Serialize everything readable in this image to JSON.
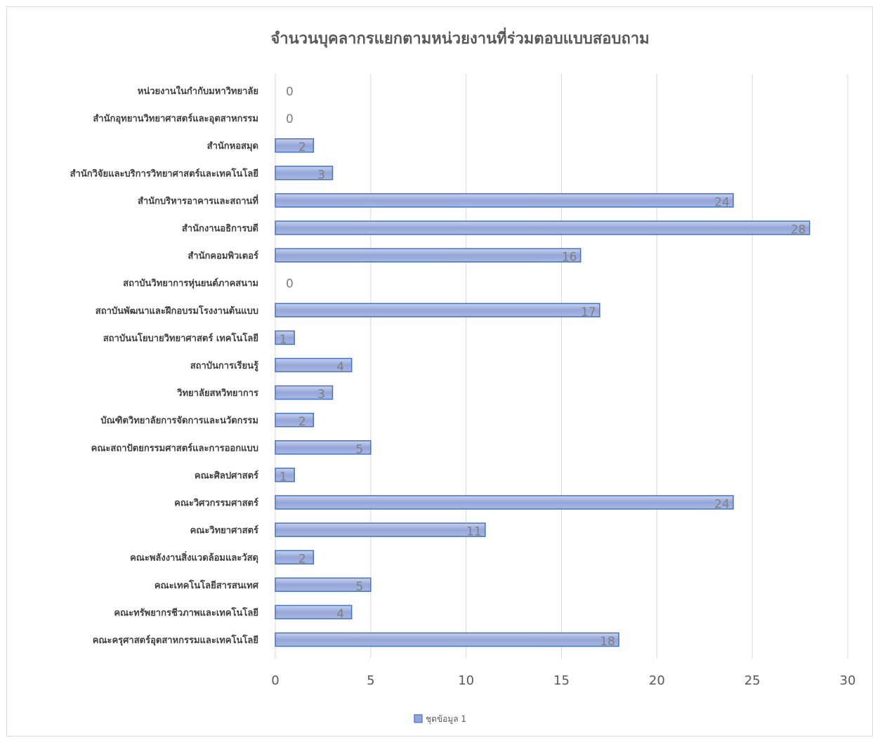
{
  "chart_data": {
    "type": "bar",
    "orientation": "horizontal",
    "title": "จำนวนบุคลากรแยกตามหน่วยงานที่ร่วมตอบแบบสอบถาม",
    "xlabel": "",
    "ylabel": "",
    "xlim": [
      0,
      30
    ],
    "x_ticks": [
      0,
      5,
      10,
      15,
      20,
      25,
      30
    ],
    "grid": true,
    "legend_position": "bottom",
    "categories": [
      "คณะครุศาสตร์อุตสาหกรรมและเทคโนโลยี",
      "คณะทรัพยากรชีวภาพและเทคโนโลยี",
      "คณะเทคโนโลยีสารสนเทศ",
      "คณะพลังงานสิ่งแวดล้อมและวัสดุ",
      "คณะวิทยาศาสตร์",
      "คณะวิศวกรรมศาสตร์",
      "คณะศิลปศาสตร์",
      "คณะสถาปัตยกรรมศาสตร์และการออกแบบ",
      "บัณฑิตวิทยาลัยการจัดการและนวัตกรรม",
      "วิทยาลัยสหวิทยาการ",
      "สถาบันการเรียนรู้",
      "สถาบันนโยบายวิทยาศาสตร์ เทคโนโลยี",
      "สถาบันพัฒนาและฝึกอบรมโรงงานต้นแบบ",
      "สถาบันวิทยาการหุ่นยนต์ภาคสนาม",
      "สำนักคอมพิวเตอร์",
      "สำนักงานอธิการบดี",
      "สำนักบริหารอาคารและสถานที่",
      "สำนักวิจัยและบริการวิทยาศาสตร์และเทคโนโลยี",
      "สำนักหอสมุด",
      "สำนักอุทยานวิทยาศาสตร์และอุตสาหกรรม",
      "หน่วยงานในกำกับมหาวิทยาลัย"
    ],
    "series": [
      {
        "name": "ชุดข้อมูล 1",
        "values": [
          18,
          4,
          5,
          2,
          11,
          24,
          1,
          5,
          2,
          3,
          4,
          1,
          17,
          0,
          16,
          28,
          24,
          3,
          2,
          0,
          0
        ]
      }
    ],
    "colors": {
      "bar_fill_top": "#c9d3ee",
      "bar_fill_mid": "#94a6d8",
      "bar_fill_bottom": "#a9b8e2",
      "bar_stroke": "#4472c4",
      "grid": "#d9d9d9",
      "title": "#595959",
      "tick_label": "#595959",
      "category_label": "#404040",
      "data_label": "#7f7f7f"
    }
  }
}
